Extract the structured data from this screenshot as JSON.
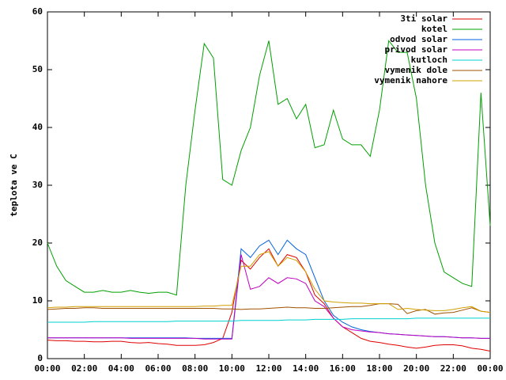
{
  "chart_data": {
    "type": "line",
    "y_label": "teplota ve C",
    "legend": "top-right",
    "x": [
      0,
      0.5,
      1,
      1.5,
      2,
      2.5,
      3,
      3.5,
      4,
      4.5,
      5,
      5.5,
      6,
      6.5,
      7,
      7.5,
      8,
      8.5,
      9,
      9.5,
      10,
      10.5,
      11,
      11.5,
      12,
      12.5,
      13,
      13.5,
      14,
      14.5,
      15,
      15.5,
      16,
      16.5,
      17,
      17.5,
      18,
      18.5,
      19,
      19.5,
      20,
      20.5,
      21,
      21.5,
      22,
      22.5,
      23,
      23.5,
      24
    ],
    "xlim": [
      0,
      24
    ],
    "xticks": [
      {
        "value": 0,
        "label": "00:00"
      },
      {
        "value": 2,
        "label": "02:00"
      },
      {
        "value": 4,
        "label": "04:00"
      },
      {
        "value": 6,
        "label": "06:00"
      },
      {
        "value": 8,
        "label": "08:00"
      },
      {
        "value": 10,
        "label": "10:00"
      },
      {
        "value": 12,
        "label": "12:00"
      },
      {
        "value": 14,
        "label": "14:00"
      },
      {
        "value": 16,
        "label": "16:00"
      },
      {
        "value": 18,
        "label": "18:00"
      },
      {
        "value": 20,
        "label": "20:00"
      },
      {
        "value": 22,
        "label": "22:00"
      },
      {
        "value": 24,
        "label": "00:00"
      }
    ],
    "ylim": [
      0,
      60
    ],
    "yticks": [
      0,
      10,
      20,
      30,
      40,
      50,
      60
    ],
    "series": [
      {
        "name": "3ti solar",
        "color": "#e00000",
        "values": [
          3.2,
          3.1,
          3.1,
          3.0,
          3.0,
          2.9,
          2.9,
          3.0,
          3.0,
          2.8,
          2.7,
          2.8,
          2.6,
          2.5,
          2.3,
          2.3,
          2.3,
          2.4,
          2.8,
          3.5,
          8,
          17,
          15.5,
          17.5,
          19,
          16,
          18,
          17.5,
          15,
          11,
          9.5,
          7,
          5.5,
          4.5,
          3.5,
          3,
          2.8,
          2.5,
          2.3,
          2,
          1.8,
          2,
          2.3,
          2.4,
          2.4,
          2.2,
          1.8,
          1.6,
          1.3
        ]
      },
      {
        "name": "kotel",
        "color": "#00a000",
        "values": [
          20,
          16,
          13.5,
          12.5,
          11.5,
          11.5,
          11.8,
          11.5,
          11.5,
          11.8,
          11.5,
          11.3,
          11.5,
          11.5,
          11,
          30,
          43,
          54.5,
          52,
          31,
          30,
          36,
          40,
          49,
          55,
          44,
          45,
          41.5,
          44,
          36.5,
          37,
          43,
          38,
          37,
          37,
          35,
          43,
          55,
          53,
          53,
          45,
          30,
          20,
          15,
          14,
          13,
          12.5,
          46,
          23
        ]
      },
      {
        "name": "odvod solar",
        "color": "#0060e0",
        "values": [
          3.6,
          3.6,
          3.6,
          3.6,
          3.6,
          3.6,
          3.6,
          3.6,
          3.6,
          3.6,
          3.6,
          3.6,
          3.6,
          3.6,
          3.6,
          3.6,
          3.5,
          3.5,
          3.5,
          3.5,
          3.5,
          19,
          17.5,
          19.5,
          20.5,
          18,
          20.5,
          19,
          18,
          14,
          10,
          7.5,
          6.3,
          5.5,
          5,
          4.7,
          4.5,
          4.3,
          4.2,
          4.1,
          4,
          3.9,
          3.8,
          3.8,
          3.7,
          3.6,
          3.6,
          3.5,
          3.5
        ]
      },
      {
        "name": "privod solar",
        "color": "#c000c0",
        "values": [
          3.6,
          3.6,
          3.6,
          3.6,
          3.6,
          3.6,
          3.6,
          3.6,
          3.6,
          3.5,
          3.5,
          3.5,
          3.5,
          3.5,
          3.5,
          3.5,
          3.5,
          3.4,
          3.4,
          3.4,
          3.4,
          18,
          12,
          12.5,
          14,
          13,
          14,
          13.8,
          13,
          10,
          9,
          7,
          5.5,
          5,
          4.8,
          4.6,
          4.5,
          4.3,
          4.2,
          4.1,
          4,
          3.9,
          3.8,
          3.8,
          3.7,
          3.6,
          3.6,
          3.5,
          3.5
        ]
      },
      {
        "name": "kutloch",
        "color": "#00d0d0",
        "values": [
          6.3,
          6.3,
          6.3,
          6.3,
          6.3,
          6.4,
          6.4,
          6.4,
          6.4,
          6.4,
          6.4,
          6.4,
          6.4,
          6.4,
          6.5,
          6.5,
          6.5,
          6.5,
          6.5,
          6.5,
          6.5,
          6.6,
          6.6,
          6.6,
          6.6,
          6.6,
          6.7,
          6.7,
          6.7,
          6.8,
          6.8,
          6.8,
          6.8,
          6.9,
          6.9,
          6.9,
          6.9,
          6.9,
          6.9,
          6.9,
          7,
          7,
          7,
          7,
          7,
          7,
          7,
          7,
          7
        ]
      },
      {
        "name": "vymenik dole",
        "color": "#a05000",
        "values": [
          8.5,
          8.6,
          8.7,
          8.7,
          8.8,
          8.8,
          8.7,
          8.7,
          8.7,
          8.7,
          8.7,
          8.7,
          8.7,
          8.7,
          8.7,
          8.7,
          8.7,
          8.7,
          8.7,
          8.6,
          8.6,
          8.5,
          8.6,
          8.6,
          8.7,
          8.8,
          8.9,
          8.8,
          8.8,
          8.7,
          8.7,
          8.8,
          8.9,
          9,
          9,
          9.2,
          9.5,
          9.5,
          9.4,
          7.8,
          8.3,
          8.5,
          7.7,
          7.9,
          8,
          8.4,
          8.8,
          8.2,
          8
        ]
      },
      {
        "name": "vymenik nahore",
        "color": "#d0a000",
        "values": [
          8.8,
          8.9,
          8.9,
          9,
          9,
          9,
          9,
          9,
          9,
          9,
          9,
          9,
          9,
          9,
          9,
          9,
          9,
          9.1,
          9.1,
          9.2,
          9.2,
          16,
          16,
          18,
          18.5,
          16,
          17.5,
          17,
          15,
          12,
          10,
          9.8,
          9.7,
          9.6,
          9.6,
          9.5,
          9.5,
          9.5,
          8.5,
          8.7,
          8.5,
          8.4,
          8.3,
          8.3,
          8.5,
          8.8,
          9,
          8.2,
          8
        ]
      }
    ]
  }
}
